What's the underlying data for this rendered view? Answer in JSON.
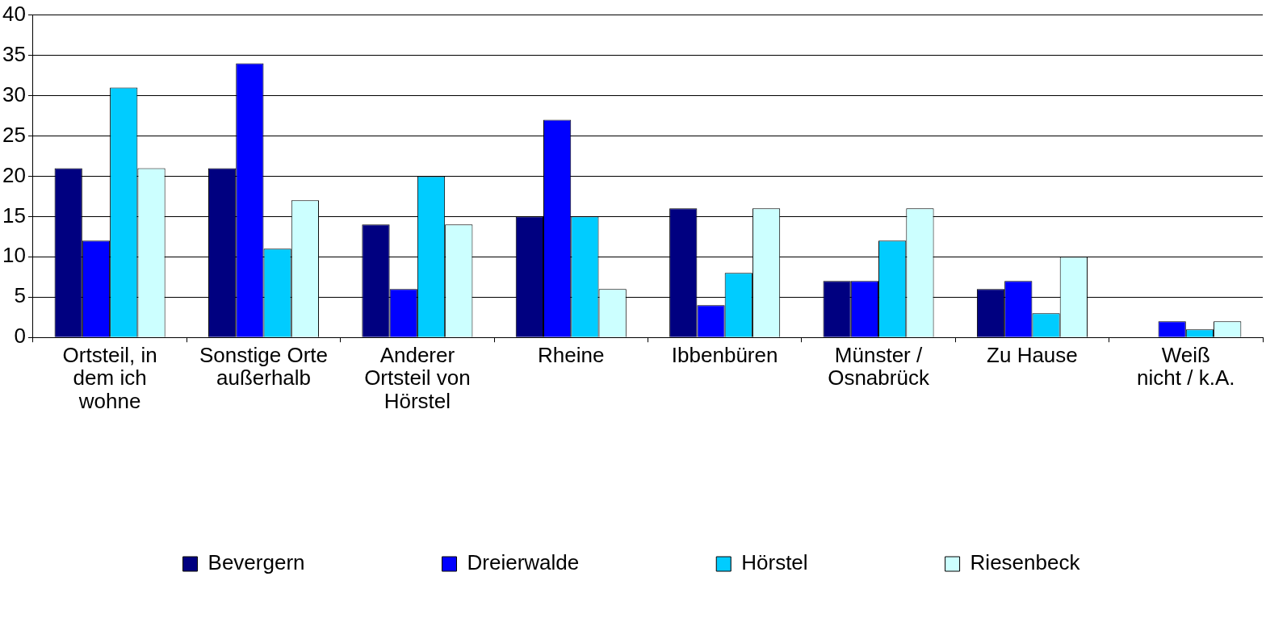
{
  "chart_data": {
    "type": "bar",
    "categories": [
      "Ortsteil, in\ndem ich\nwohne",
      "Sonstige Orte\naußerhalb",
      "Anderer\nOrtsteil von\nHörstel",
      "Rheine",
      "Ibbenbüren",
      "Münster /\nOsnabrück",
      "Zu Hause",
      "Weiß\nnicht / k.A."
    ],
    "series": [
      {
        "name": "Bevergern",
        "color": "#000080",
        "values": [
          21,
          21,
          14,
          15,
          16,
          7,
          6,
          0
        ]
      },
      {
        "name": "Dreierwalde",
        "color": "#0000ff",
        "values": [
          12,
          34,
          6,
          27,
          4,
          7,
          7,
          2
        ]
      },
      {
        "name": "Hörstel",
        "color": "#00ccff",
        "values": [
          31,
          11,
          20,
          15,
          8,
          12,
          3,
          1
        ]
      },
      {
        "name": "Riesenbeck",
        "color": "#ccffff",
        "values": [
          21,
          17,
          14,
          6,
          16,
          16,
          10,
          2
        ]
      }
    ],
    "ylim": [
      0,
      40
    ],
    "yticks": [
      0,
      5,
      10,
      15,
      20,
      25,
      30,
      35,
      40
    ],
    "grid": "y",
    "legend": "bottom"
  }
}
